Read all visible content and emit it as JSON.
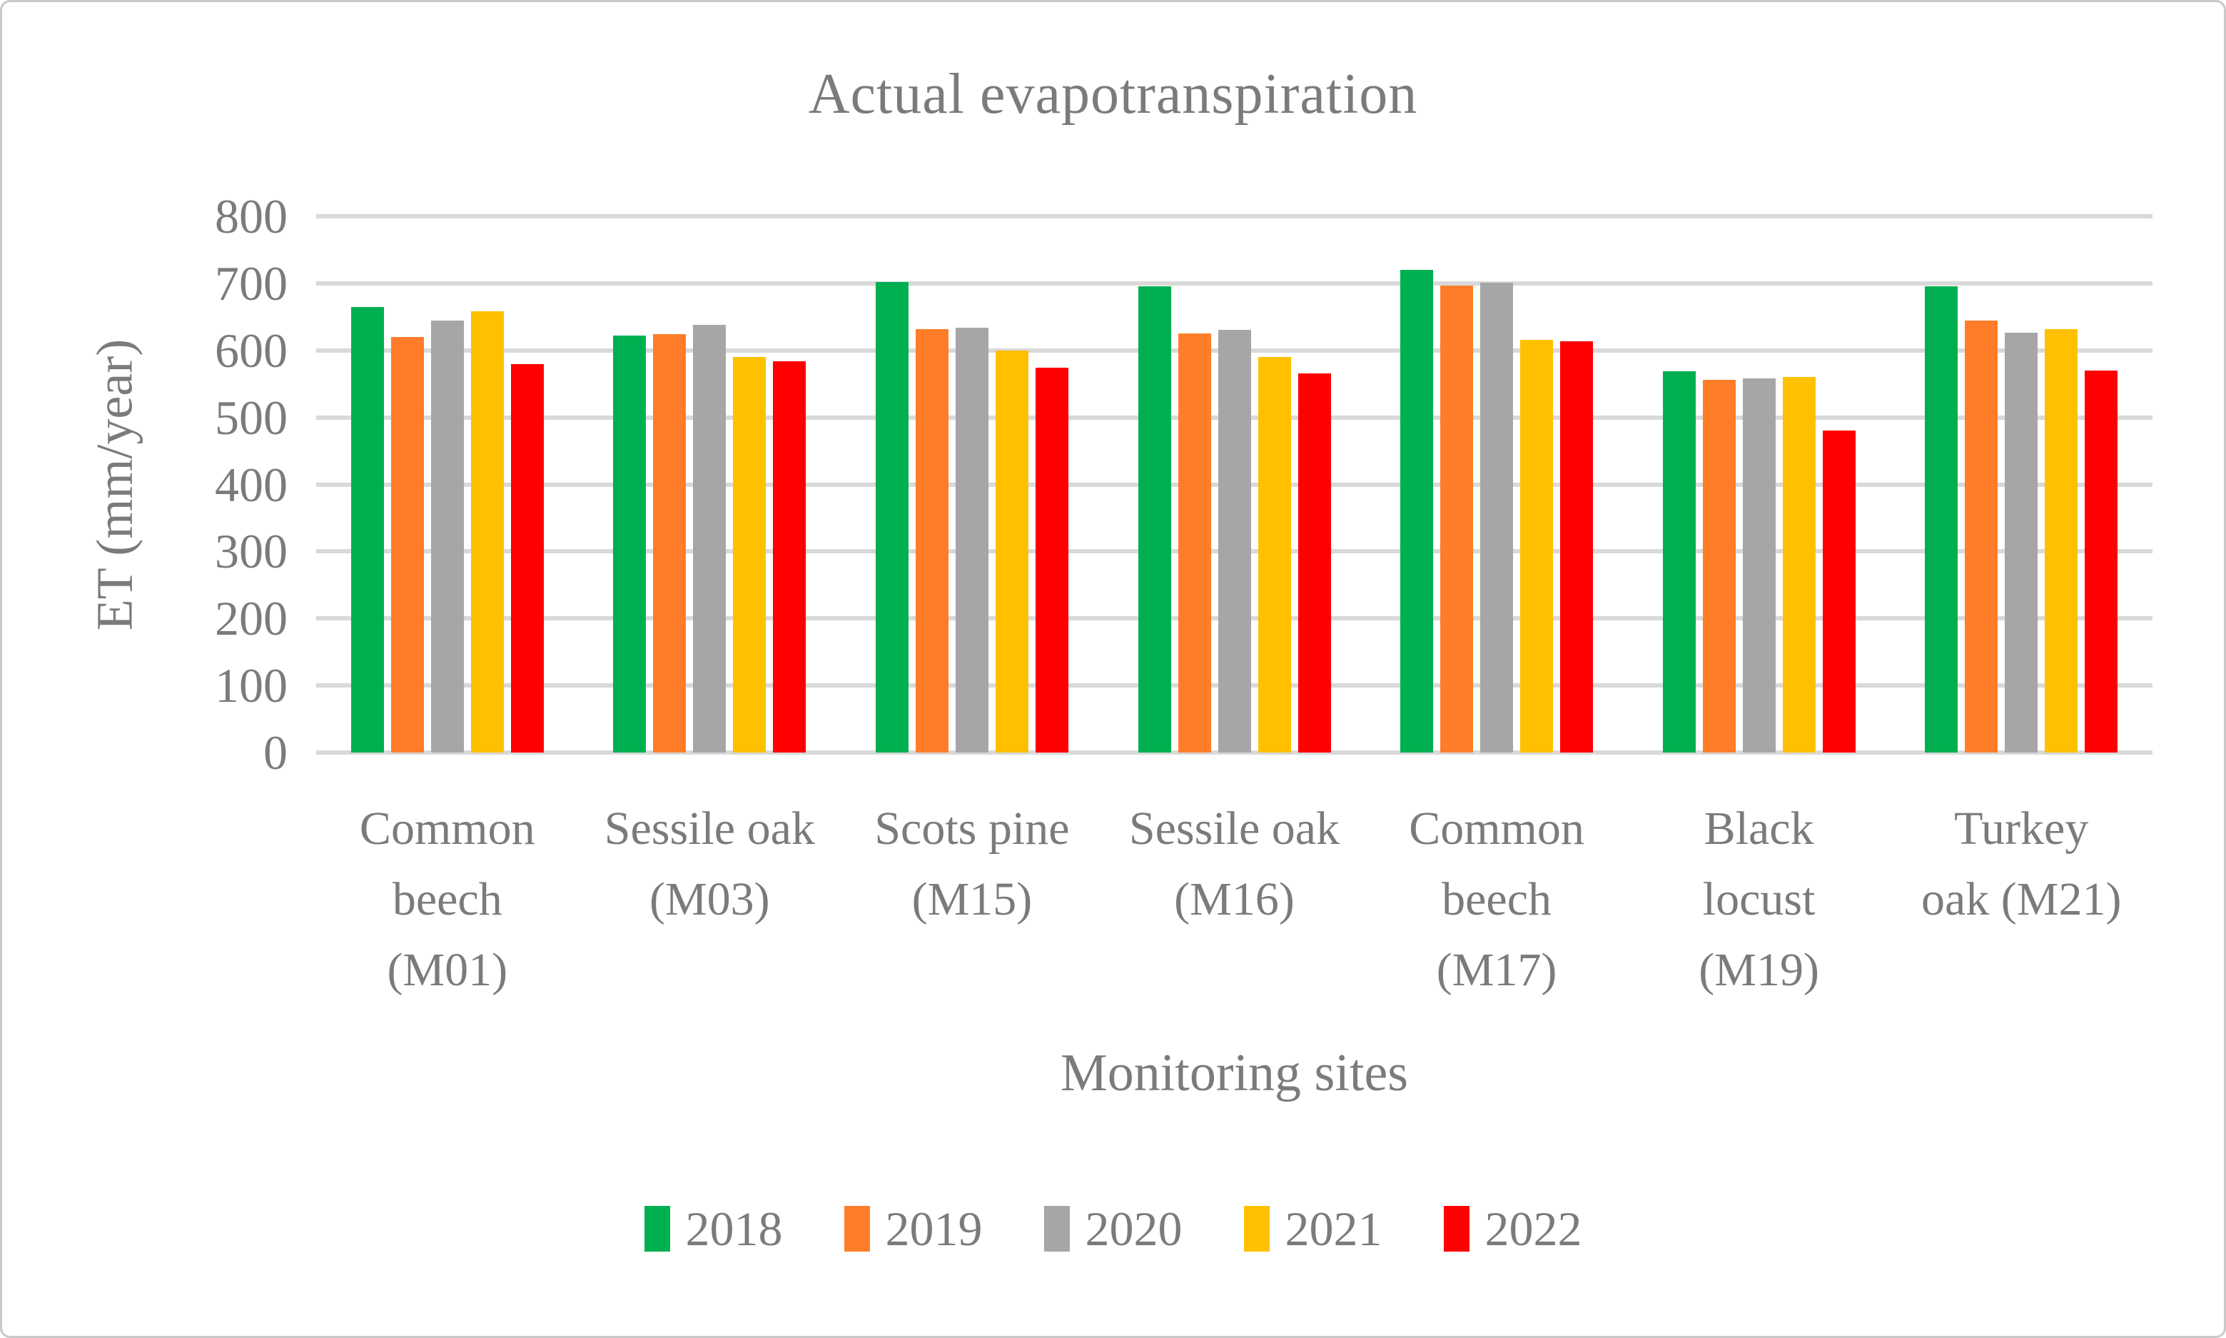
{
  "figure": {
    "title": "Actual evapotranspiration",
    "x_axis_title": "Monitoring sites",
    "y_axis_title": "ET (mm/year)"
  },
  "palette": {
    "text_gray": "#7b7b7b",
    "gridline_gray": "#d9d9d9",
    "frame_border": "#c9c9c9",
    "series_2018_green": "#00b050",
    "series_2019_orange": "#ff7d29",
    "series_2020_gray": "#a6a6a6",
    "series_2021_yellow": "#ffc000",
    "series_2022_red": "#ff0000"
  },
  "chart_data": {
    "type": "bar",
    "title": "Actual evapotranspiration",
    "xlabel": "Monitoring sites",
    "ylabel": "ET (mm/year)",
    "ylim": [
      0,
      800
    ],
    "yticks": [
      0,
      100,
      200,
      300,
      400,
      500,
      600,
      700,
      800
    ],
    "grid": true,
    "legend_position": "bottom",
    "categories": [
      "Common beech (M01)",
      "Sessile oak (M03)",
      "Scots pine (M15)",
      "Sessile oak (M16)",
      "Common beech (M17)",
      "Black locust (M19)",
      "Turkey oak (M21)"
    ],
    "category_lines": [
      [
        "Common",
        "beech",
        "(M01)"
      ],
      [
        "Sessile oak",
        "(M03)"
      ],
      [
        "Scots pine",
        "(M15)"
      ],
      [
        "Sessile oak",
        "(M16)"
      ],
      [
        "Common",
        "beech",
        "(M17)"
      ],
      [
        "Black",
        "locust",
        "(M19)"
      ],
      [
        "Turkey",
        "oak (M21)"
      ]
    ],
    "series": [
      {
        "name": "2018",
        "color": "#00b050",
        "values": [
          665,
          622,
          702,
          696,
          720,
          569,
          696
        ]
      },
      {
        "name": "2019",
        "color": "#ff7d29",
        "values": [
          620,
          624,
          632,
          625,
          697,
          556,
          644
        ]
      },
      {
        "name": "2020",
        "color": "#a6a6a6",
        "values": [
          645,
          638,
          634,
          631,
          701,
          558,
          626
        ]
      },
      {
        "name": "2021",
        "color": "#ffc000",
        "values": [
          658,
          590,
          600,
          590,
          616,
          560,
          632
        ]
      },
      {
        "name": "2022",
        "color": "#ff0000",
        "values": [
          580,
          584,
          574,
          566,
          614,
          480,
          570
        ]
      }
    ]
  }
}
